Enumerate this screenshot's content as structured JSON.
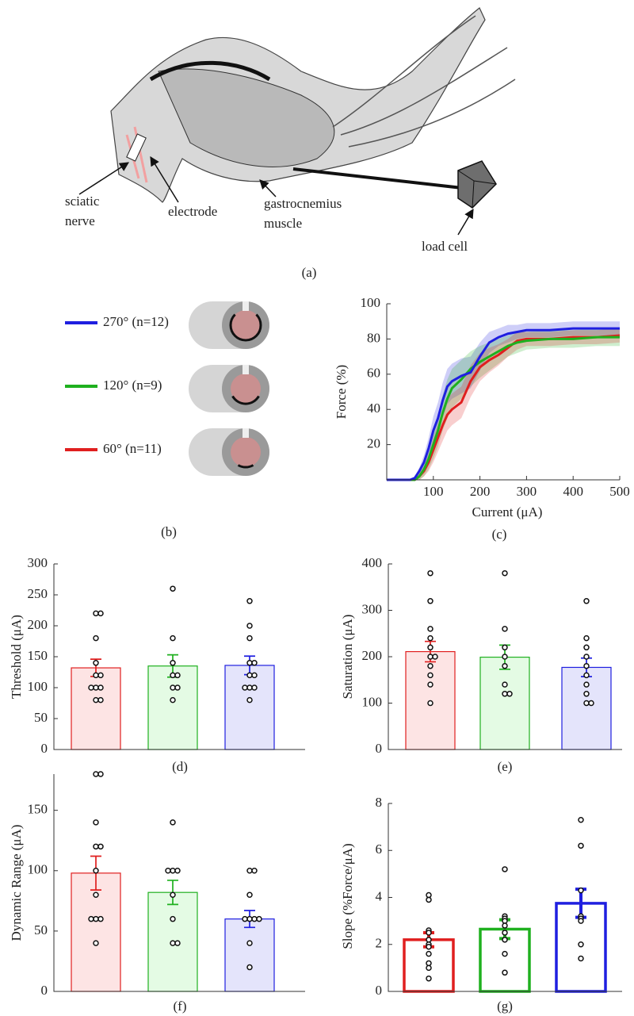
{
  "illustration": {
    "sciatic_nerve": [
      "sciatic",
      "nerve"
    ],
    "electrode": "electrode",
    "gastrocnemius_muscle": [
      "gastrocnemius",
      "muscle"
    ],
    "load_cell": "load cell",
    "caption": "(a)"
  },
  "legend_panel": {
    "caption": "(b)"
  },
  "chart_data": [
    {
      "type": "line",
      "xlabel": "Current (μA)",
      "ylabel": "Force (%)",
      "caption": "(c)",
      "x": [
        0,
        25,
        50,
        60,
        70,
        80,
        90,
        100,
        110,
        120,
        130,
        140,
        160,
        180,
        200,
        220,
        240,
        260,
        280,
        300,
        350,
        400,
        450,
        500
      ],
      "xlim": [
        0,
        500
      ],
      "ylim": [
        0,
        100
      ],
      "xticks": [
        100,
        200,
        300,
        400,
        500
      ],
      "yticks": [
        20,
        40,
        60,
        80,
        100
      ],
      "series": [
        {
          "name": "270° (n=12)",
          "color": "#1f1fe0",
          "values": [
            0,
            0,
            0,
            1,
            5,
            10,
            18,
            28,
            35,
            45,
            53,
            56,
            59,
            61,
            70,
            78,
            81,
            83,
            84,
            85,
            85,
            86,
            86,
            86
          ],
          "errors": [
            0,
            0,
            0,
            1,
            2,
            4,
            6,
            8,
            9,
            10,
            10,
            10,
            10,
            9,
            8,
            6,
            5,
            5,
            4,
            4,
            4,
            4,
            4,
            4
          ]
        },
        {
          "name": "120° (n=9)",
          "color": "#1fb01f",
          "values": [
            0,
            0,
            0,
            0,
            2,
            6,
            12,
            20,
            28,
            38,
            46,
            52,
            57,
            63,
            67,
            70,
            73,
            76,
            78,
            79,
            80,
            80,
            81,
            81
          ],
          "errors": [
            0,
            0,
            0,
            0,
            2,
            4,
            6,
            8,
            9,
            10,
            11,
            11,
            11,
            10,
            9,
            8,
            7,
            6,
            6,
            5,
            5,
            5,
            5,
            5
          ]
        },
        {
          "name": "60°  (n=11)",
          "color": "#e01f1f",
          "values": [
            0,
            0,
            0,
            0,
            2,
            5,
            10,
            17,
            24,
            31,
            37,
            40,
            44,
            56,
            64,
            68,
            71,
            75,
            79,
            80,
            80,
            81,
            81,
            82
          ],
          "errors": [
            0,
            0,
            0,
            0,
            2,
            3,
            5,
            7,
            8,
            9,
            9,
            9,
            9,
            9,
            8,
            7,
            6,
            5,
            5,
            4,
            4,
            4,
            4,
            4
          ]
        }
      ]
    },
    {
      "type": "bar",
      "ylabel": "Threshold (μA)",
      "caption": "(d)",
      "categories": [
        null,
        null,
        null
      ],
      "values": [
        132,
        135,
        136
      ],
      "errors": [
        14,
        18,
        15
      ],
      "points": [
        [
          220,
          220,
          180,
          140,
          120,
          120,
          100,
          100,
          100,
          80,
          80
        ],
        [
          260,
          180,
          140,
          120,
          120,
          100,
          100,
          80
        ],
        [
          240,
          200,
          180,
          140,
          140,
          120,
          120,
          100,
          100,
          100,
          80
        ]
      ],
      "colors": [
        "#e01f1f",
        "#1fb01f",
        "#1f1fe0"
      ],
      "fill_colors": [
        "#fde4e4",
        "#e4fbe4",
        "#e4e4fb"
      ],
      "ylim": [
        0,
        300
      ],
      "yticks": [
        0,
        50,
        100,
        150,
        200,
        250,
        300
      ]
    },
    {
      "type": "bar",
      "ylabel": "Saturation (μA)",
      "caption": "(e)",
      "categories": [
        null,
        null,
        null
      ],
      "values": [
        211,
        199,
        177
      ],
      "errors": [
        22,
        26,
        20
      ],
      "points": [
        [
          380,
          320,
          260,
          240,
          220,
          200,
          200,
          180,
          160,
          140,
          100
        ],
        [
          380,
          260,
          220,
          200,
          180,
          140,
          120,
          120
        ],
        [
          320,
          240,
          220,
          200,
          180,
          160,
          140,
          120,
          100,
          100
        ]
      ],
      "colors": [
        "#e01f1f",
        "#1fb01f",
        "#1f1fe0"
      ],
      "fill_colors": [
        "#fde4e4",
        "#e4fbe4",
        "#e4e4fb"
      ],
      "ylim": [
        0,
        400
      ],
      "yticks": [
        0,
        100,
        200,
        300,
        400
      ]
    },
    {
      "type": "bar",
      "ylabel": "Dynamic Range (μA)",
      "caption": "(f)",
      "categories": [
        null,
        null,
        null
      ],
      "values": [
        98,
        82,
        60
      ],
      "errors": [
        14,
        10,
        7
      ],
      "points": [
        [
          180,
          180,
          140,
          120,
          120,
          100,
          80,
          60,
          60,
          60,
          40
        ],
        [
          140,
          100,
          100,
          100,
          80,
          60,
          40,
          40
        ],
        [
          100,
          100,
          80,
          60,
          60,
          60,
          60,
          40,
          20
        ]
      ],
      "colors": [
        "#e01f1f",
        "#1fb01f",
        "#1f1fe0"
      ],
      "fill_colors": [
        "#fde4e4",
        "#e4fbe4",
        "#e4e4fb"
      ],
      "ylim": [
        0,
        180
      ],
      "yticks": [
        0,
        50,
        100,
        150
      ]
    },
    {
      "type": "bar",
      "ylabel": "Slope (%Force/μA)",
      "caption": "(g)",
      "categories": [
        null,
        null,
        null
      ],
      "values": [
        2.2,
        2.65,
        3.75
      ],
      "errors": [
        0.3,
        0.4,
        0.6
      ],
      "points": [
        [
          4.1,
          3.9,
          2.6,
          2.5,
          2.2,
          2.0,
          1.9,
          1.6,
          1.2,
          1.0,
          0.55
        ],
        [
          5.2,
          3.2,
          3.1,
          3.0,
          2.8,
          2.5,
          2.2,
          1.6,
          0.8
        ],
        [
          7.3,
          6.2,
          4.3,
          3.2,
          3.1,
          3.0,
          2.0,
          1.4
        ]
      ],
      "colors": [
        "#e01f1f",
        "#1fb01f",
        "#1f1fe0"
      ],
      "fill_colors": [
        "#ffffff",
        "#ffffff",
        "#ffffff"
      ],
      "ylim": [
        0,
        8
      ],
      "yticks": [
        0,
        2,
        4,
        6,
        8
      ]
    }
  ]
}
